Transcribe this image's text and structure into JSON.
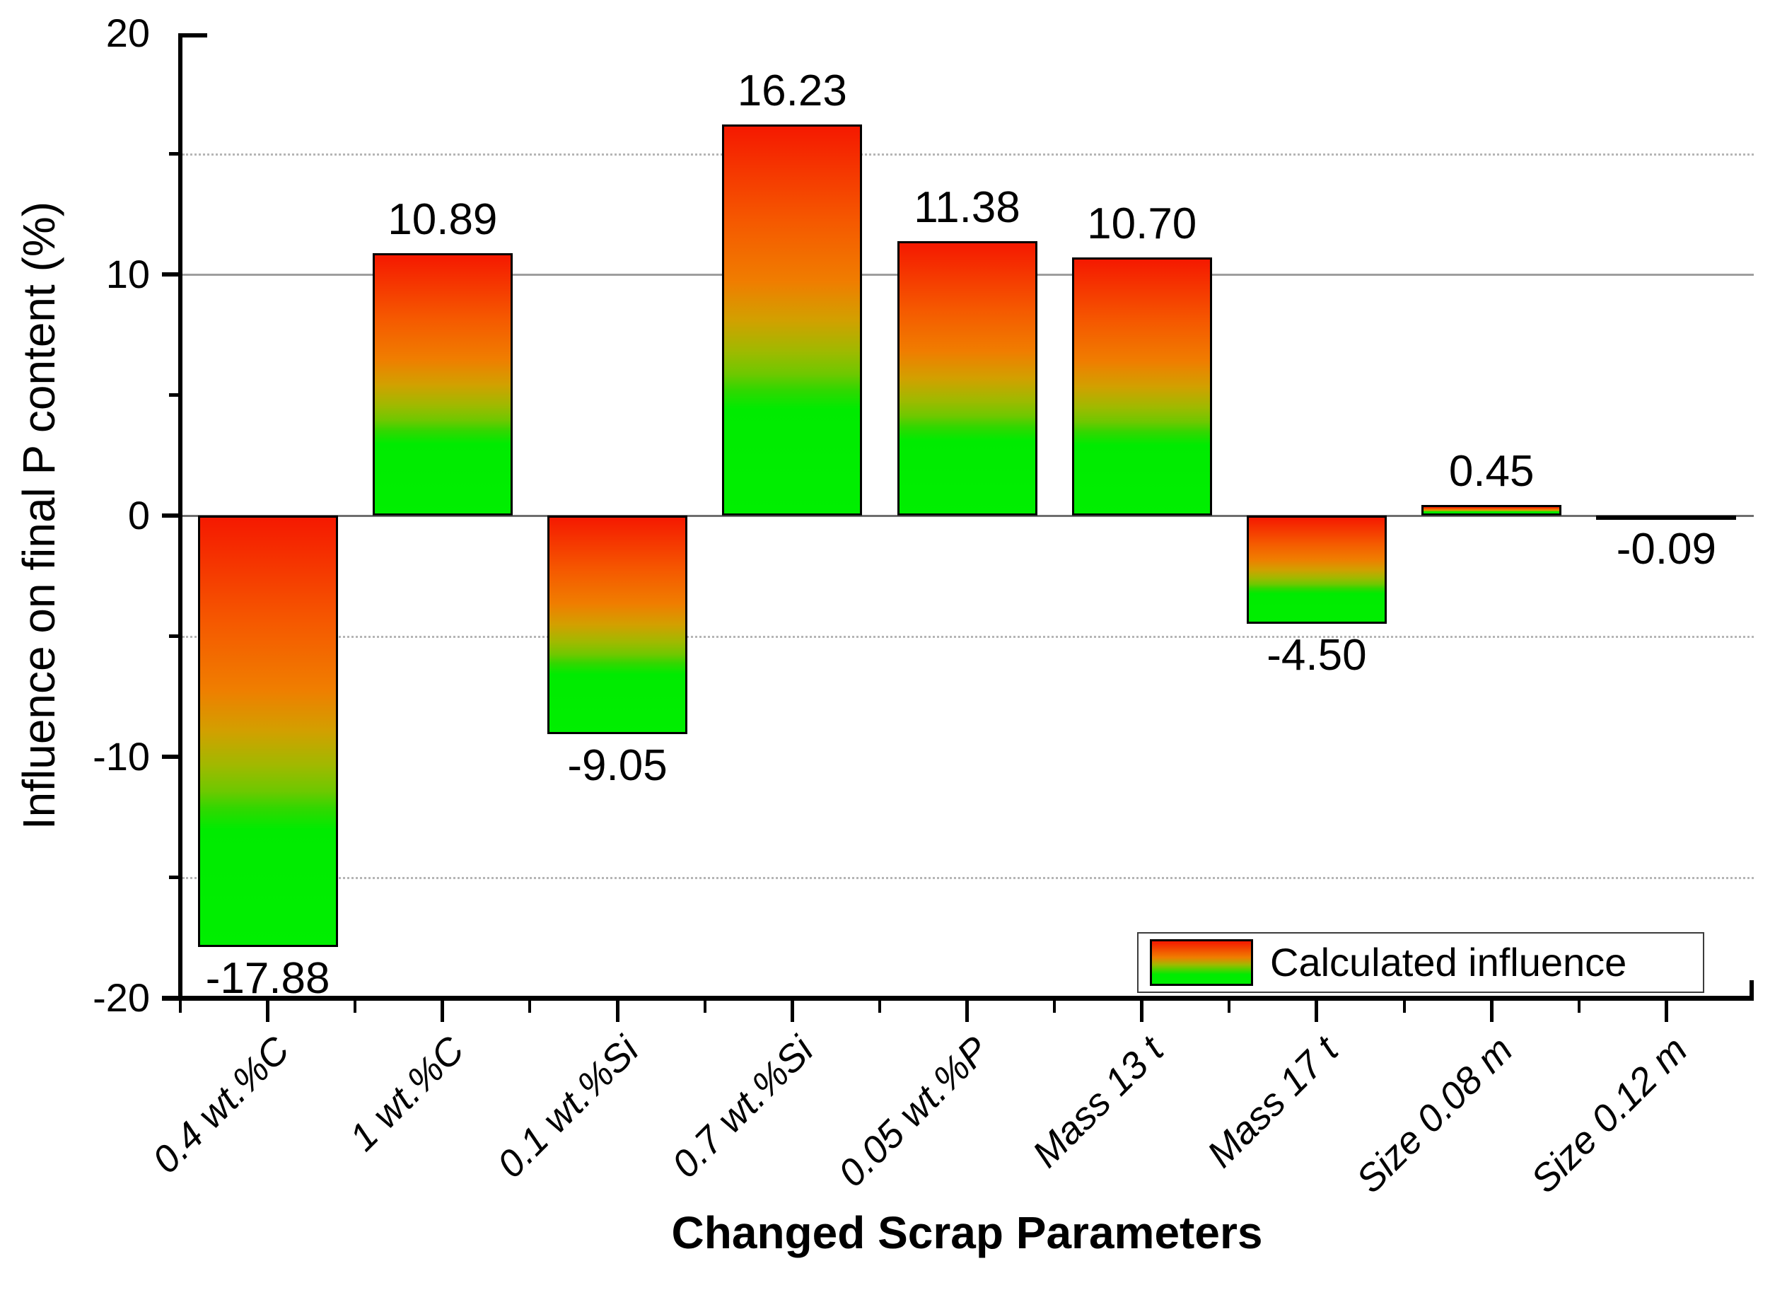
{
  "chart_data": {
    "type": "bar",
    "title": "",
    "xlabel": "Changed Scrap Parameters",
    "ylabel": "Influence on final P content (%)",
    "categories": [
      "0.4 wt.%C",
      "1 wt.%C",
      "0.1 wt.%Si",
      "0.7 wt.%Si",
      "0.05 wt.%P",
      "Mass 13 t",
      "Mass 17 t",
      "Size 0.08 m",
      "Size 0.12 m"
    ],
    "values": [
      -17.88,
      10.89,
      -9.05,
      16.23,
      11.38,
      10.7,
      -4.5,
      0.45,
      -0.09
    ],
    "value_labels": [
      "-17.88",
      "10.89",
      "-9.05",
      "16.23",
      "11.38",
      "10.70",
      "-4.50",
      "0.45",
      "-0.09"
    ],
    "ylim": [
      -20,
      20
    ],
    "ytick_major": [
      -20,
      -10,
      0,
      10,
      20
    ],
    "ytick_major_labels": [
      "-20",
      "-10",
      "0",
      "10",
      "20"
    ],
    "ytick_minor": [
      -15,
      -5,
      5,
      15
    ],
    "gridlines_dotted": [
      15,
      -5,
      -15
    ],
    "gridlines_solid": [
      10
    ],
    "grid": "partial horizontal",
    "legend_position": "inside bottom-right",
    "legend_label": "Calculated influence",
    "bar_style": "vertical gradient red (top) to green (bottom), black outline",
    "bar_gradient_colors": [
      "#f51900",
      "#f07d00",
      "#a0b900",
      "#00ef00"
    ],
    "zero_line_color": "#6e6e6e",
    "solid_gridline_color": "#9e9e9e",
    "dotted_gridline_color": "#b5b5b5"
  },
  "legend": {
    "label": "Calculated influence"
  },
  "titles": {
    "x": "Changed Scrap Parameters",
    "y": "Influence on final P content (%)"
  }
}
